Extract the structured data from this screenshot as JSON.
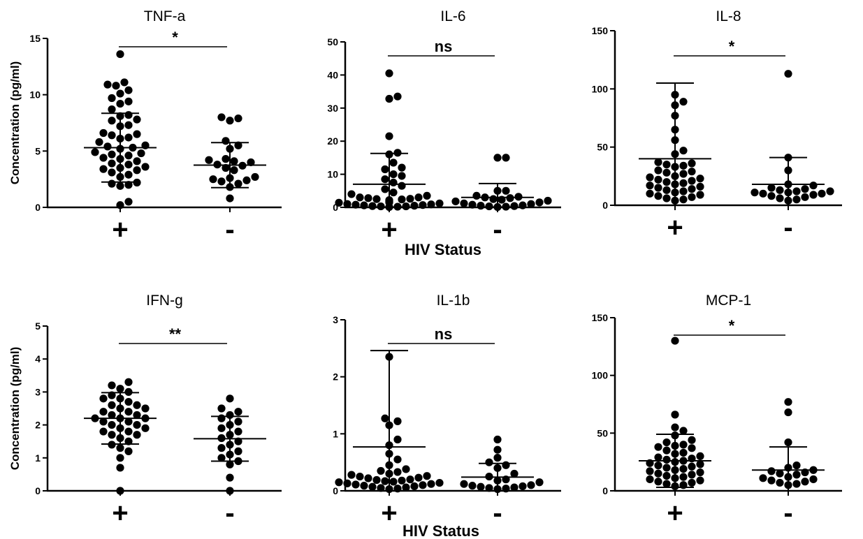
{
  "figure": {
    "ylabel": "Concentration (pg/ml)",
    "xlabel": "HIV Status"
  },
  "chart_data": [
    {
      "type": "scatter",
      "title": "TNF-a",
      "ylim": [
        0,
        15
      ],
      "yticks": [
        0,
        5,
        10,
        15
      ],
      "categories": [
        "+",
        "-"
      ],
      "significance": "*",
      "series": [
        {
          "points": [
            13.6,
            11.1,
            10.9,
            10.8,
            10.4,
            10.1,
            9.7,
            9.4,
            9.2,
            8.7,
            8.2,
            8.1,
            7.8,
            7.7,
            7.3,
            7.2,
            6.6,
            6.5,
            6.4,
            6.2,
            6.1,
            5.8,
            5.5,
            5.4,
            5.3,
            5.2,
            4.9,
            4.8,
            4.7,
            4.6,
            4.4,
            4.3,
            4.1,
            3.9,
            3.8,
            3.6,
            3.5,
            3.4,
            3.3,
            3.1,
            2.9,
            2.7,
            2.2,
            2.1,
            2.0,
            1.9,
            0.5,
            0.2
          ],
          "mean": 5.3,
          "sd_high": 8.35,
          "sd_low": 2.25
        },
        {
          "points": [
            8.0,
            7.9,
            7.7,
            5.9,
            5.5,
            5.2,
            4.3,
            4.2,
            4.1,
            4.0,
            3.8,
            3.7,
            3.5,
            3.3,
            2.7,
            2.6,
            2.5,
            2.4,
            2.3,
            2.1,
            1.8,
            0.8
          ],
          "mean": 3.75,
          "sd_high": 5.75,
          "sd_low": 1.75
        }
      ]
    },
    {
      "type": "scatter",
      "title": "IL-6",
      "ylim": [
        0,
        50
      ],
      "yticks": [
        0,
        10,
        20,
        30,
        40,
        50
      ],
      "categories": [
        "+",
        "-"
      ],
      "significance": "ns",
      "series": [
        {
          "points": [
            40.5,
            33.5,
            32.8,
            21.5,
            16.5,
            16.0,
            13.5,
            12.0,
            11.5,
            10.0,
            9.5,
            8.5,
            7.5,
            6.5,
            5.5,
            4.5,
            4.0,
            3.5,
            3.0,
            3.0,
            2.8,
            2.6,
            2.5,
            2.4,
            2.2,
            2.0,
            1.8,
            1.6,
            1.5,
            1.4,
            1.2,
            1.0,
            0.9,
            0.8,
            0.7,
            0.6,
            0.5,
            0.4,
            0.3,
            0.3,
            0.2,
            0.1
          ],
          "mean": 7.0,
          "sd_high": 16.3,
          "sd_low": 0.1
        },
        {
          "points": [
            15.0,
            15.0,
            5.0,
            5.0,
            3.5,
            3.2,
            3.0,
            2.8,
            2.5,
            2.3,
            2.0,
            1.8,
            1.5,
            1.2,
            1.0,
            0.8,
            0.6,
            0.5,
            0.4,
            0.3,
            0.2,
            0.1
          ],
          "mean": 3.0,
          "sd_high": 7.2,
          "sd_low": 0.1
        }
      ]
    },
    {
      "type": "scatter",
      "title": "IL-8",
      "ylim": [
        0,
        150
      ],
      "yticks": [
        0,
        50,
        100,
        150
      ],
      "categories": [
        "+",
        "-"
      ],
      "significance": "*",
      "series": [
        {
          "points": [
            95,
            89,
            86,
            77,
            65,
            56,
            47,
            44,
            37,
            36,
            35,
            34,
            33,
            30,
            29,
            28,
            27,
            25,
            24,
            23,
            22,
            21,
            20,
            19,
            18,
            17,
            16,
            15,
            14,
            13,
            12,
            11,
            10,
            9,
            8,
            7,
            6,
            5,
            4
          ],
          "mean": 40,
          "sd_high": 105,
          "sd_low": 0
        },
        {
          "points": [
            113,
            41,
            30,
            18,
            17,
            15,
            14,
            13,
            12,
            12,
            11,
            11,
            10,
            10,
            9,
            8,
            7,
            6,
            5,
            4
          ],
          "mean": 18,
          "sd_high": 41,
          "sd_low": 0
        }
      ]
    },
    {
      "type": "scatter",
      "title": "IFN-g",
      "ylim": [
        0,
        5
      ],
      "yticks": [
        0,
        1,
        2,
        3,
        4,
        5
      ],
      "categories": [
        "+",
        "-"
      ],
      "significance": "**",
      "series": [
        {
          "points": [
            3.3,
            3.2,
            3.1,
            3.0,
            2.9,
            2.8,
            2.8,
            2.7,
            2.6,
            2.6,
            2.5,
            2.5,
            2.4,
            2.4,
            2.3,
            2.3,
            2.2,
            2.2,
            2.2,
            2.1,
            2.1,
            2.0,
            2.0,
            1.9,
            1.9,
            1.8,
            1.8,
            1.7,
            1.7,
            1.6,
            1.5,
            1.4,
            1.3,
            1.2,
            1.0,
            0.7,
            0.0
          ],
          "mean": 2.2,
          "sd_high": 2.98,
          "sd_low": 1.42
        },
        {
          "points": [
            2.8,
            2.5,
            2.4,
            2.3,
            2.2,
            2.1,
            2.0,
            1.9,
            1.8,
            1.7,
            1.6,
            1.5,
            1.4,
            1.3,
            1.2,
            1.1,
            1.0,
            0.9,
            0.8,
            0.4,
            0.0
          ],
          "mean": 1.58,
          "sd_high": 2.26,
          "sd_low": 0.9
        }
      ]
    },
    {
      "type": "scatter",
      "title": "IL-1b",
      "ylim": [
        0,
        3
      ],
      "yticks": [
        0,
        1,
        2,
        3
      ],
      "categories": [
        "+",
        "-"
      ],
      "significance": "ns",
      "series": [
        {
          "points": [
            2.35,
            1.27,
            1.22,
            1.15,
            0.9,
            0.8,
            0.65,
            0.55,
            0.45,
            0.38,
            0.35,
            0.33,
            0.3,
            0.28,
            0.26,
            0.25,
            0.23,
            0.22,
            0.2,
            0.19,
            0.18,
            0.17,
            0.16,
            0.15,
            0.14,
            0.13,
            0.12,
            0.11,
            0.1,
            0.09,
            0.08,
            0.07,
            0.06,
            0.05,
            0.04,
            0.03
          ],
          "mean": 0.77,
          "sd_high": 2.46,
          "sd_low": 0
        },
        {
          "points": [
            0.9,
            0.72,
            0.58,
            0.5,
            0.45,
            0.4,
            0.3,
            0.25,
            0.2,
            0.18,
            0.15,
            0.12,
            0.1,
            0.09,
            0.08,
            0.07,
            0.06,
            0.05,
            0.04,
            0.03
          ],
          "mean": 0.24,
          "sd_high": 0.48,
          "sd_low": 0
        }
      ]
    },
    {
      "type": "scatter",
      "title": "MCP-1",
      "ylim": [
        0,
        150
      ],
      "yticks": [
        0,
        50,
        100,
        150
      ],
      "categories": [
        "+",
        "-"
      ],
      "significance": "*",
      "series": [
        {
          "points": [
            130,
            66,
            55,
            52,
            48,
            44,
            42,
            40,
            39,
            38,
            37,
            35,
            33,
            32,
            30,
            29,
            28,
            27,
            26,
            25,
            24,
            23,
            22,
            21,
            20,
            19,
            18,
            17,
            16,
            15,
            14,
            13,
            12,
            11,
            10,
            9,
            8,
            7,
            6,
            5,
            4
          ],
          "mean": 26,
          "sd_high": 49,
          "sd_low": 3
        },
        {
          "points": [
            77,
            68,
            42,
            22,
            20,
            18,
            17,
            16,
            15,
            14,
            12,
            11,
            10,
            9,
            8,
            7,
            6,
            5
          ],
          "mean": 18,
          "sd_high": 38,
          "sd_low": 0
        }
      ]
    }
  ]
}
